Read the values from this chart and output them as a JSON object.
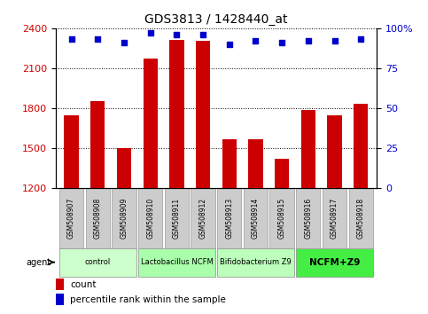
{
  "title": "GDS3813 / 1428440_at",
  "samples": [
    "GSM508907",
    "GSM508908",
    "GSM508909",
    "GSM508910",
    "GSM508911",
    "GSM508912",
    "GSM508913",
    "GSM508914",
    "GSM508915",
    "GSM508916",
    "GSM508917",
    "GSM508918"
  ],
  "count_values": [
    1745,
    1855,
    1505,
    2175,
    2310,
    2305,
    1565,
    1565,
    1425,
    1790,
    1750,
    1835
  ],
  "percentile_values": [
    93,
    93,
    91,
    97,
    96,
    96,
    90,
    92,
    91,
    92,
    92,
    93
  ],
  "bar_color": "#cc0000",
  "dot_color": "#0000cc",
  "ylim_left": [
    1200,
    2400
  ],
  "yticks_left": [
    1200,
    1500,
    1800,
    2100,
    2400
  ],
  "ylim_right": [
    0,
    100
  ],
  "yticks_right": [
    0,
    25,
    50,
    75,
    100
  ],
  "ylabel_left_color": "#cc0000",
  "ylabel_right_color": "#0000cc",
  "groups": [
    {
      "label": "control",
      "start": 0,
      "end": 3,
      "color": "#ccffcc"
    },
    {
      "label": "Lactobacillus NCFM",
      "start": 3,
      "end": 6,
      "color": "#aaffaa"
    },
    {
      "label": "Bifidobacterium Z9",
      "start": 6,
      "end": 9,
      "color": "#bbffbb"
    },
    {
      "label": "NCFM+Z9",
      "start": 9,
      "end": 12,
      "color": "#44ee44"
    }
  ],
  "agent_label": "agent",
  "legend_count_label": "count",
  "legend_percentile_label": "percentile rank within the sample",
  "background_color": "#ffffff",
  "plot_bg_color": "#ffffff",
  "sample_box_color": "#cccccc",
  "sample_box_edge_color": "#999999"
}
